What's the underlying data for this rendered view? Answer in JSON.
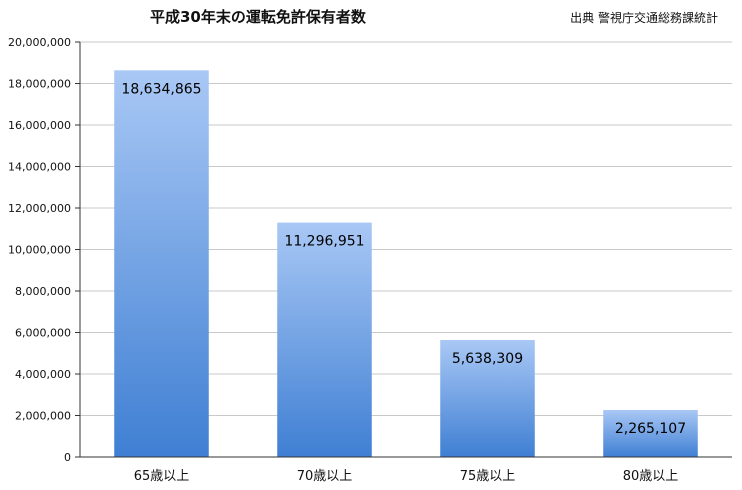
{
  "title": "平成30年末の運転免許保有者数",
  "source": "出典 警視庁交通総務課統計",
  "colors": {
    "bar_top": "#a9c8f5",
    "bar_bottom": "#3f7fd3",
    "grid": "#c9c9c9",
    "axis": "#333333"
  },
  "chart_data": {
    "type": "bar",
    "categories": [
      "65歳以上",
      "70歳以上",
      "75歳以上",
      "80歳以上"
    ],
    "values": [
      18634865,
      11296951,
      5638309,
      2265107
    ],
    "value_labels": [
      "18,634,865",
      "11,296,951",
      "5,638,309",
      "2,265,107"
    ],
    "title": "平成30年末の運転免許保有者数",
    "xlabel": "",
    "ylabel": "",
    "ylim": [
      0,
      20000000
    ],
    "yticks": [
      0,
      2000000,
      4000000,
      6000000,
      8000000,
      10000000,
      12000000,
      14000000,
      16000000,
      18000000,
      20000000
    ],
    "ytick_labels": [
      "0",
      "2,000,000",
      "4,000,000",
      "6,000,000",
      "8,000,000",
      "10,000,000",
      "12,000,000",
      "14,000,000",
      "16,000,000",
      "18,000,000",
      "20,000,000"
    ],
    "grid": true,
    "legend": "none"
  }
}
